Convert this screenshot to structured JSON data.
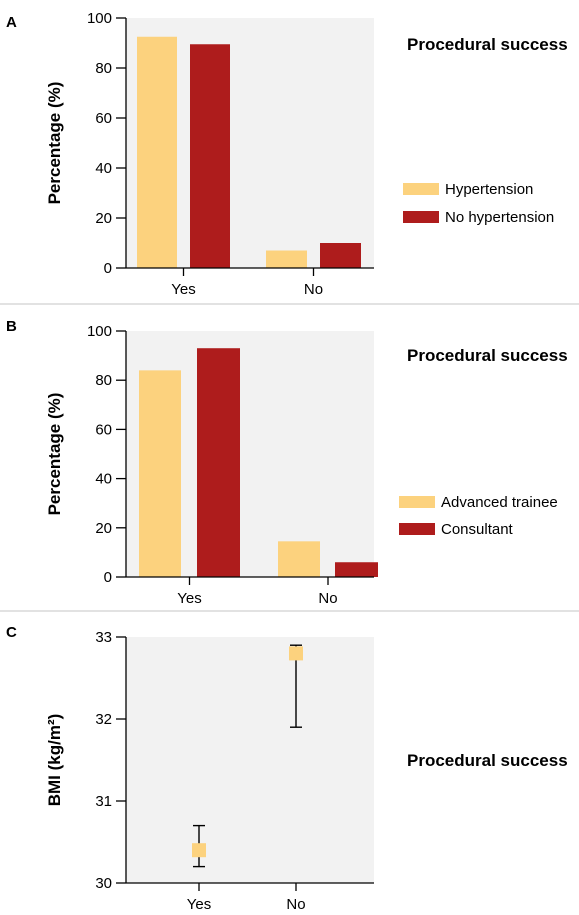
{
  "colors": {
    "bg_plot": "#f2f2f2",
    "series1": "#fcd27e",
    "series2": "#ae1c1c",
    "separator": "#d9d9d9"
  },
  "chart_data": [
    {
      "panel": "A",
      "type": "bar",
      "categories": [
        "Yes",
        "No"
      ],
      "series": [
        {
          "name": "Hypertension",
          "values": [
            92.5,
            7
          ]
        },
        {
          "name": "No hypertension",
          "values": [
            89.5,
            10
          ]
        }
      ],
      "ylabel": "Percentage (%)",
      "ylim": [
        0,
        100
      ],
      "yticks": [
        0,
        20,
        40,
        60,
        80,
        100
      ],
      "legend_title": "Procedural success",
      "grid": false,
      "legend_placement": "right"
    },
    {
      "panel": "B",
      "type": "bar",
      "categories": [
        "Yes",
        "No"
      ],
      "series": [
        {
          "name": "Advanced trainee",
          "values": [
            84,
            14.5
          ]
        },
        {
          "name": "Consultant",
          "values": [
            93,
            6
          ]
        }
      ],
      "ylabel": "Percentage (%)",
      "ylim": [
        0,
        100
      ],
      "yticks": [
        0,
        20,
        40,
        60,
        80,
        100
      ],
      "legend_title": "Procedural success",
      "grid": false,
      "legend_placement": "right"
    },
    {
      "panel": "C",
      "type": "scatter",
      "categories": [
        "Yes",
        "No"
      ],
      "points": [
        {
          "category": "Yes",
          "y": 30.4,
          "err_low": 30.2,
          "err_high": 30.7
        },
        {
          "category": "No",
          "y": 32.8,
          "err_low": 31.9,
          "err_high": 32.9
        }
      ],
      "ylabel": "BMI (kg/m²)",
      "ylim": [
        30,
        33
      ],
      "yticks": [
        30,
        31,
        32,
        33
      ],
      "legend_title": "Procedural success",
      "grid": false,
      "legend_placement": "right"
    }
  ]
}
